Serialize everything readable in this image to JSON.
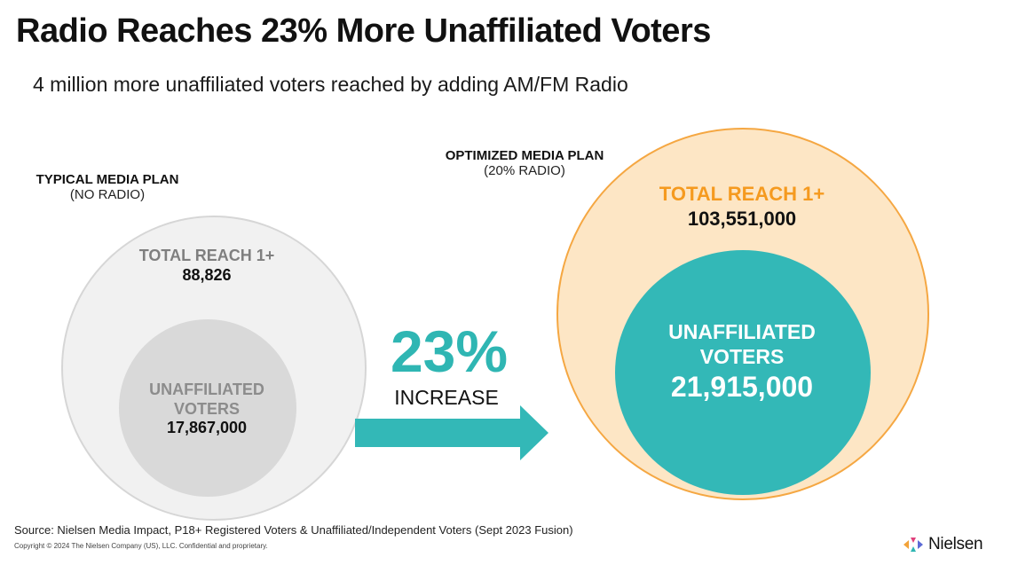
{
  "title": "Radio Reaches 23% More Unaffiliated Voters",
  "subtitle": "4 million more unaffiliated voters reached by adding AM/FM Radio",
  "typical_plan": {
    "name": "TYPICAL MEDIA PLAN",
    "note": "(NO RADIO)",
    "total_reach_label": "TOTAL REACH 1+",
    "total_reach_value": "88,826",
    "unaffiliated_label_line1": "UNAFFILIATED",
    "unaffiliated_label_line2": "VOTERS",
    "unaffiliated_value": "17,867,000"
  },
  "optimized_plan": {
    "name": "OPTIMIZED MEDIA PLAN",
    "note": "(20% RADIO)",
    "total_reach_label": "TOTAL REACH 1+",
    "total_reach_value": "103,551,000",
    "unaffiliated_label_line1": "UNAFFILIATED",
    "unaffiliated_label_line2": "VOTERS",
    "unaffiliated_value": "21,915,000"
  },
  "increase": {
    "percent": "23%",
    "label": "INCREASE"
  },
  "footer": {
    "source": "Source: Nielsen Media Impact, P18+ Registered Voters & Unaffiliated/Independent Voters (Sept 2023 Fusion)",
    "copyright": "Copyright © 2024 The Nielsen Company (US), LLC. Confidential and proprietary.",
    "logo_text": "Nielsen"
  },
  "colors": {
    "teal": "#33b8b7",
    "orange": "#f59a1f",
    "peach": "#fde6c5",
    "light_gray": "#f1f1f1",
    "mid_gray": "#d9d9d9"
  },
  "icons": {
    "arrow": "right-arrow-icon",
    "logo": "nielsen-logo-icon"
  }
}
